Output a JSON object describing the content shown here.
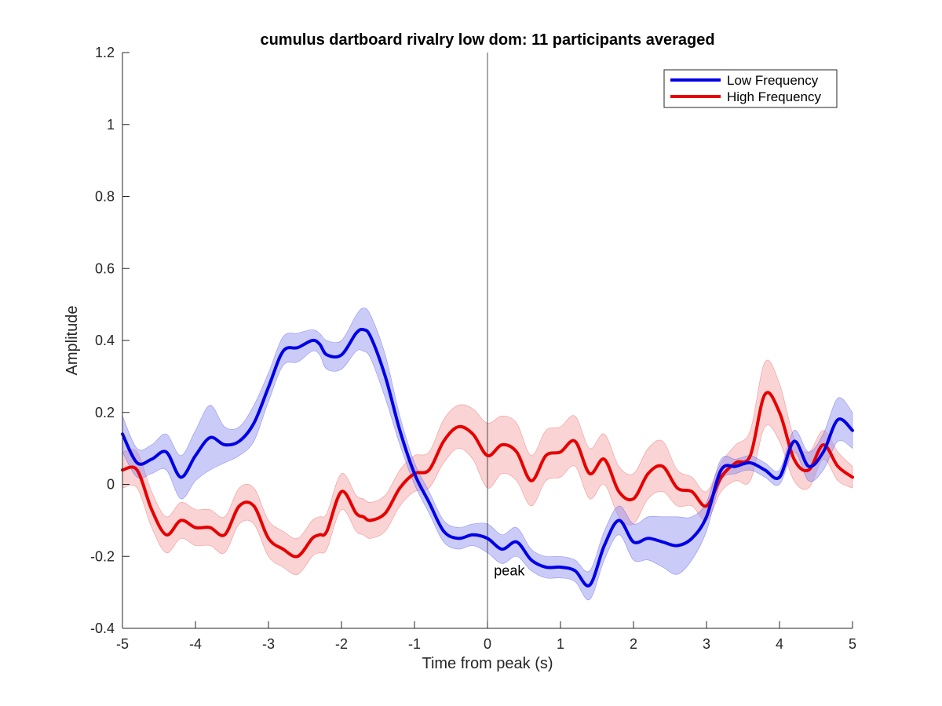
{
  "chart_data": {
    "type": "line",
    "title": "cumulus dartboard rivalry low dom: 11 participants averaged",
    "xlabel": "Time from peak (s)",
    "ylabel": "Amplitude",
    "xlim": [
      -5,
      5
    ],
    "ylim": [
      -0.4,
      1.2
    ],
    "xticks": [
      -5,
      -4,
      -3,
      -2,
      -1,
      0,
      1,
      2,
      3,
      4,
      5
    ],
    "xtick_labels": [
      "-5",
      "-4",
      "-3",
      "-2",
      "-1",
      "0",
      "1",
      "2",
      "3",
      "4",
      "5"
    ],
    "yticks": [
      -0.4,
      -0.2,
      0,
      0.2,
      0.4,
      0.6,
      0.8,
      1,
      1.2
    ],
    "ytick_labels": [
      "-0.4",
      "-0.2",
      "0",
      "0.2",
      "0.4",
      "0.6",
      "0.8",
      "1",
      "1.2"
    ],
    "grid": false,
    "legend_position": "top-right",
    "vline_x": 0,
    "annotation": {
      "text": "peak",
      "x": 0.1,
      "y": -0.24
    },
    "x": [
      -5.0,
      -4.8,
      -4.6,
      -4.4,
      -4.2,
      -4.0,
      -3.8,
      -3.6,
      -3.4,
      -3.2,
      -3.0,
      -2.8,
      -2.6,
      -2.4,
      -2.3,
      -2.2,
      -2.0,
      -1.8,
      -1.7,
      -1.6,
      -1.4,
      -1.2,
      -1.0,
      -0.8,
      -0.6,
      -0.4,
      -0.2,
      0.0,
      0.2,
      0.4,
      0.6,
      0.8,
      1.0,
      1.2,
      1.4,
      1.6,
      1.8,
      2.0,
      2.2,
      2.4,
      2.6,
      2.8,
      3.0,
      3.2,
      3.4,
      3.6,
      3.8,
      4.0,
      4.2,
      4.4,
      4.6,
      4.8,
      5.0
    ],
    "series": [
      {
        "name": "Low Frequency",
        "color": "#0000e6",
        "band_color": "#8c8cf0",
        "values": [
          0.14,
          0.06,
          0.07,
          0.09,
          0.02,
          0.08,
          0.13,
          0.11,
          0.12,
          0.17,
          0.27,
          0.37,
          0.38,
          0.4,
          0.39,
          0.36,
          0.36,
          0.42,
          0.43,
          0.41,
          0.3,
          0.15,
          0.03,
          -0.05,
          -0.13,
          -0.15,
          -0.14,
          -0.15,
          -0.18,
          -0.16,
          -0.21,
          -0.23,
          -0.23,
          -0.24,
          -0.28,
          -0.17,
          -0.1,
          -0.16,
          -0.15,
          -0.16,
          -0.17,
          -0.15,
          -0.09,
          0.04,
          0.05,
          0.06,
          0.04,
          0.02,
          0.12,
          0.05,
          0.09,
          0.18,
          0.15
        ],
        "errors": [
          0.05,
          0.04,
          0.04,
          0.05,
          0.06,
          0.07,
          0.09,
          0.05,
          0.04,
          0.05,
          0.04,
          0.04,
          0.04,
          0.03,
          0.03,
          0.04,
          0.04,
          0.05,
          0.06,
          0.06,
          0.06,
          0.04,
          0.03,
          0.03,
          0.03,
          0.03,
          0.03,
          0.04,
          0.04,
          0.04,
          0.03,
          0.03,
          0.03,
          0.03,
          0.04,
          0.04,
          0.04,
          0.05,
          0.06,
          0.07,
          0.08,
          0.06,
          0.04,
          0.03,
          0.02,
          0.02,
          0.02,
          0.02,
          0.03,
          0.04,
          0.05,
          0.06,
          0.05
        ]
      },
      {
        "name": "High Frequency",
        "color": "#e60000",
        "band_color": "#f5a0a0",
        "values": [
          0.04,
          0.04,
          -0.07,
          -0.14,
          -0.1,
          -0.12,
          -0.12,
          -0.14,
          -0.06,
          -0.06,
          -0.15,
          -0.18,
          -0.2,
          -0.15,
          -0.14,
          -0.13,
          -0.02,
          -0.08,
          -0.09,
          -0.1,
          -0.08,
          -0.01,
          0.03,
          0.04,
          0.12,
          0.16,
          0.14,
          0.08,
          0.11,
          0.09,
          0.01,
          0.08,
          0.09,
          0.12,
          0.03,
          0.07,
          -0.02,
          -0.04,
          0.03,
          0.05,
          -0.01,
          -0.02,
          -0.06,
          0.02,
          0.06,
          0.08,
          0.25,
          0.2,
          0.07,
          0.04,
          0.11,
          0.05,
          0.02
        ],
        "errors": [
          0.05,
          0.05,
          0.05,
          0.05,
          0.05,
          0.05,
          0.05,
          0.05,
          0.05,
          0.05,
          0.05,
          0.05,
          0.05,
          0.05,
          0.05,
          0.05,
          0.05,
          0.05,
          0.05,
          0.05,
          0.05,
          0.05,
          0.05,
          0.05,
          0.06,
          0.06,
          0.07,
          0.09,
          0.08,
          0.08,
          0.07,
          0.07,
          0.07,
          0.07,
          0.07,
          0.07,
          0.07,
          0.07,
          0.07,
          0.07,
          0.05,
          0.04,
          0.04,
          0.04,
          0.05,
          0.07,
          0.09,
          0.08,
          0.06,
          0.05,
          0.04,
          0.04,
          0.03
        ]
      }
    ]
  }
}
